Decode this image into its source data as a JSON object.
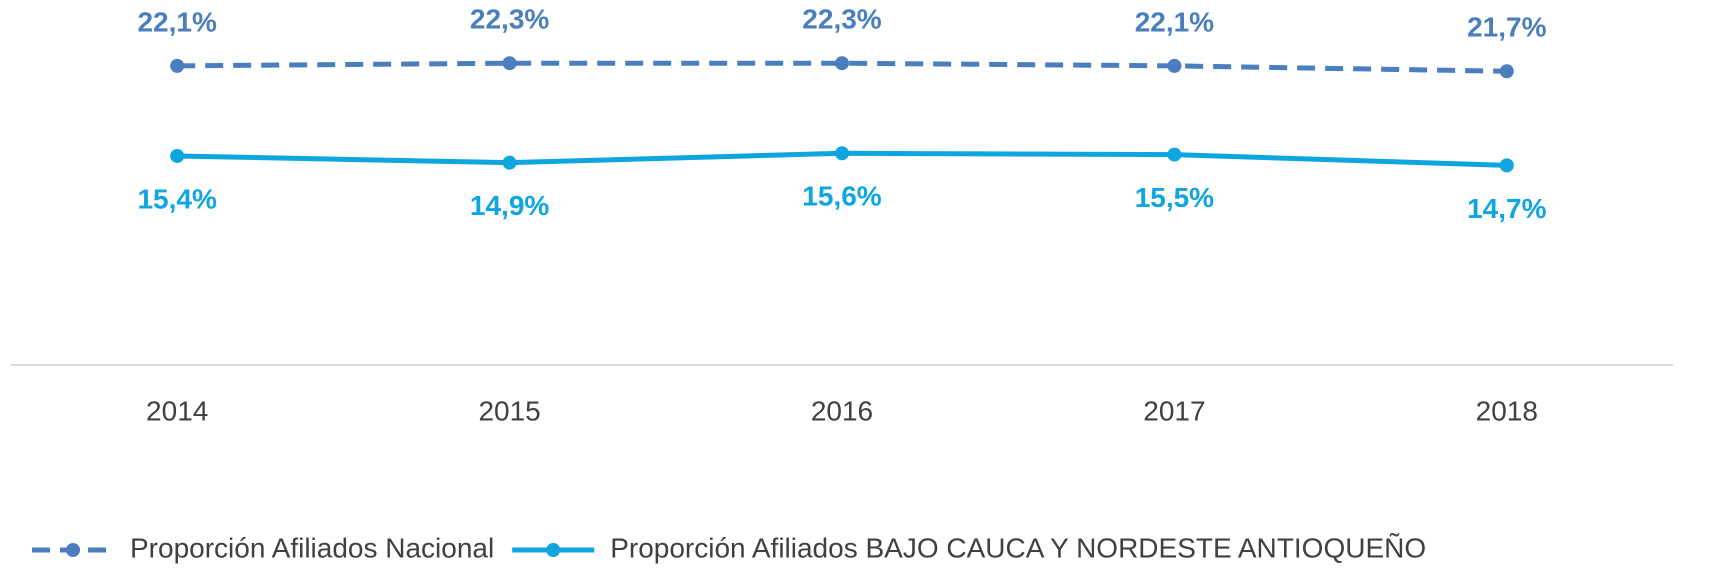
{
  "chart_data": {
    "type": "line",
    "categories": [
      "2014",
      "2015",
      "2016",
      "2017",
      "2018"
    ],
    "ylim": [
      0,
      27
    ],
    "legend": "bottom",
    "series": [
      {
        "name": "Proporción Afiliados Nacional",
        "color": "#4a7ebf",
        "line_style": "dashed",
        "label_position": "above",
        "values": [
          22.1,
          22.3,
          22.3,
          22.1,
          21.7
        ],
        "value_labels": [
          "22,1%",
          "22,3%",
          "22,3%",
          "22,1%",
          "21,7%"
        ]
      },
      {
        "name": "Proporción Afiliados BAJO CAUCA Y NORDESTE ANTIOQUEÑO",
        "color": "#0ea5e0",
        "line_style": "solid",
        "label_position": "below",
        "values": [
          15.4,
          14.9,
          15.6,
          15.5,
          14.7
        ],
        "value_labels": [
          "15,4%",
          "14,9%",
          "15,6%",
          "15,5%",
          "14,7%"
        ]
      }
    ]
  }
}
